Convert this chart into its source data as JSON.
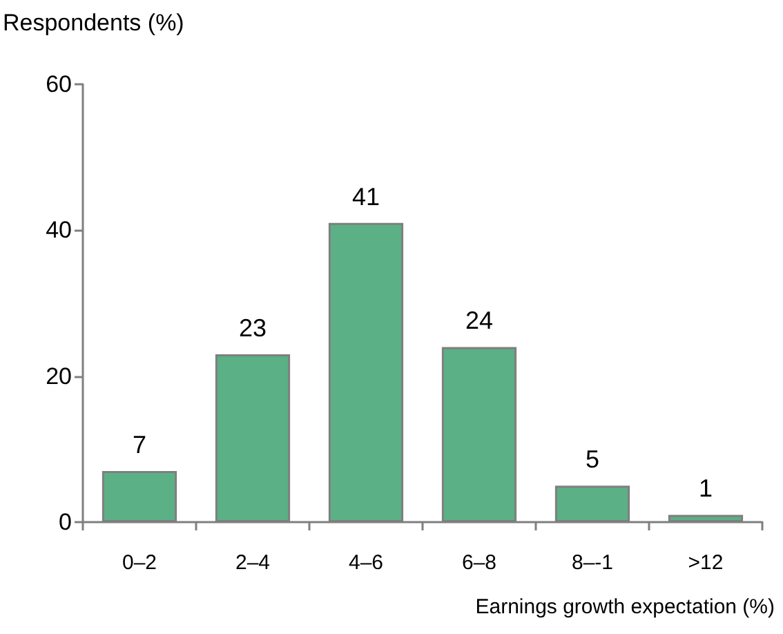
{
  "chart_data": {
    "type": "bar",
    "ylabel": "Respondents (%)",
    "xlabel": "Earnings growth expectation (%)",
    "categories": [
      "0–2",
      "2–4",
      "4–6",
      "6–8",
      "8–-1",
      ">12"
    ],
    "values": [
      7,
      23,
      41,
      24,
      5,
      1
    ],
    "color": "#5bb085",
    "ylim": [
      0,
      60
    ],
    "yticks": [
      0,
      20,
      40,
      60
    ],
    "grid": false,
    "data_labels": true
  }
}
